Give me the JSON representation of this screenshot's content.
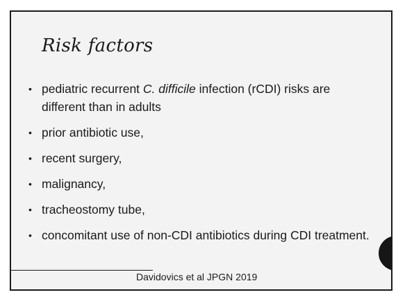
{
  "slide": {
    "title": "Risk factors",
    "bullets": [
      {
        "prefix": "pediatric recurrent ",
        "italic": "C. difficile",
        "suffix": " infection (rCDI) risks are different than in adults"
      },
      {
        "text": "prior antibiotic use,"
      },
      {
        "text": "recent surgery,"
      },
      {
        "text": "malignancy,"
      },
      {
        "text": "tracheostomy tube,"
      },
      {
        "text": "concomitant use of non-CDI antibiotics during CDI treatment."
      }
    ],
    "citation": "Davidovics et al JPGN 2019",
    "bullet_glyph": "•",
    "colors": {
      "background": "#f3f3f3",
      "text": "#1a1a1a",
      "side_tab": "#161616"
    }
  }
}
